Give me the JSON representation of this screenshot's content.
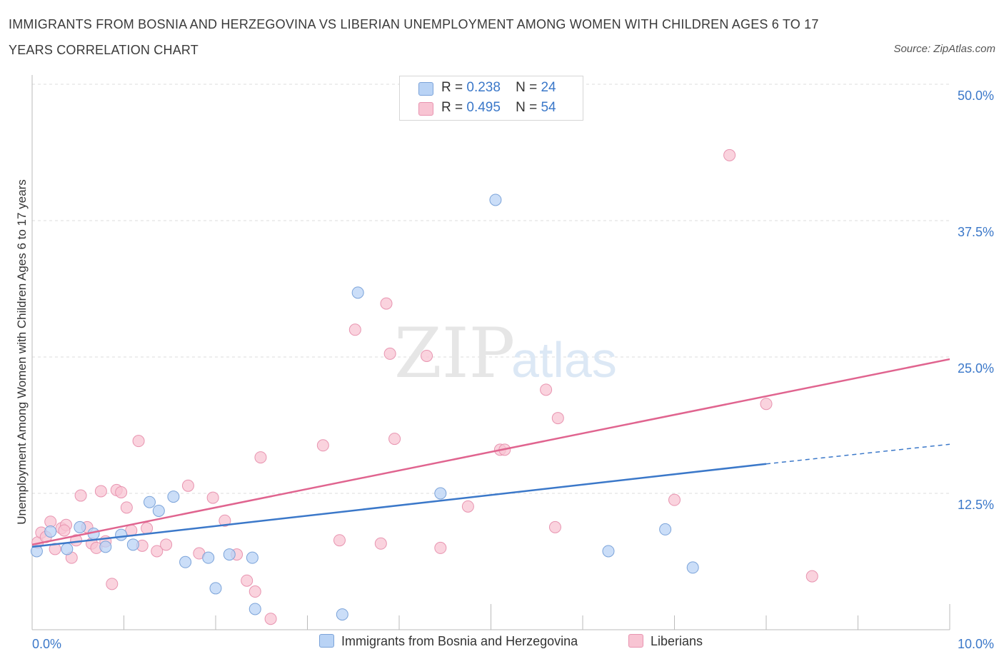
{
  "title": "IMMIGRANTS FROM BOSNIA AND HERZEGOVINA VS LIBERIAN UNEMPLOYMENT AMONG WOMEN WITH CHILDREN AGES 6 TO 17 YEARS CORRELATION CHART",
  "source": "Source: ZipAtlas.com",
  "watermark": {
    "zip": "ZIP",
    "atlas": "atlas"
  },
  "legend": {
    "rows": [
      {
        "r_label": "R =",
        "r_value": "0.238",
        "n_label": "N =",
        "n_value": "24",
        "fill": "#b9d3f5",
        "stroke": "#7ba3d9"
      },
      {
        "r_label": "R =",
        "r_value": "0.495",
        "n_label": "N =",
        "n_value": "54",
        "fill": "#f8c4d3",
        "stroke": "#e894b0"
      }
    ]
  },
  "bottom_legend": {
    "blue_label": "Immigrants from Bosnia and Herzegovina",
    "pink_label": "Liberians"
  },
  "chart_data": {
    "type": "scatter",
    "xlabel": "",
    "ylabel": "Unemployment Among Women with Children Ages 6 to 17 years",
    "xlim": [
      0,
      10
    ],
    "ylim": [
      0,
      50
    ],
    "x_tick_labels": [
      "0.0%",
      "10.0%"
    ],
    "y_ticks": [
      12.5,
      25,
      37.5,
      50
    ],
    "y_tick_labels": [
      "12.5%",
      "25.0%",
      "37.5%",
      "50.0%"
    ],
    "grid": true,
    "colors": {
      "blue": "#3b78c9",
      "pink": "#e0648f",
      "axis_label": "#3b78c9"
    },
    "series": [
      {
        "name": "Immigrants from Bosnia and Herzegovina",
        "color": "#3b78c9",
        "fill": "#b9d3f5",
        "trend": {
          "x0": 0,
          "y0": 7.6,
          "x1": 8.0,
          "y1": 15.2,
          "dashed_to_x": 10,
          "dashed_to_y": 17.0
        },
        "points": [
          [
            0.05,
            7.2
          ],
          [
            0.2,
            9.0
          ],
          [
            0.38,
            7.4
          ],
          [
            0.52,
            9.4
          ],
          [
            0.67,
            8.8
          ],
          [
            0.8,
            7.6
          ],
          [
            0.97,
            8.7
          ],
          [
            1.1,
            7.8
          ],
          [
            1.28,
            11.7
          ],
          [
            1.38,
            10.9
          ],
          [
            1.54,
            12.2
          ],
          [
            1.67,
            6.2
          ],
          [
            1.92,
            6.6
          ],
          [
            2.0,
            3.8
          ],
          [
            2.15,
            6.9
          ],
          [
            2.4,
            6.6
          ],
          [
            2.43,
            1.9
          ],
          [
            3.55,
            30.9
          ],
          [
            3.38,
            1.4
          ],
          [
            4.45,
            12.5
          ],
          [
            5.05,
            39.4
          ],
          [
            6.28,
            7.2
          ],
          [
            6.9,
            9.2
          ],
          [
            7.2,
            5.7
          ]
        ]
      },
      {
        "name": "Liberians",
        "color": "#e0648f",
        "fill": "#f8c4d3",
        "trend": {
          "x0": 0,
          "y0": 7.8,
          "x1": 10,
          "y1": 24.8
        },
        "points": [
          [
            0.06,
            8.0
          ],
          [
            0.1,
            8.9
          ],
          [
            0.15,
            8.5
          ],
          [
            0.2,
            9.9
          ],
          [
            0.25,
            7.4
          ],
          [
            0.32,
            9.3
          ],
          [
            0.37,
            9.6
          ],
          [
            0.43,
            6.6
          ],
          [
            0.48,
            8.2
          ],
          [
            0.53,
            12.3
          ],
          [
            0.6,
            9.4
          ],
          [
            0.65,
            7.9
          ],
          [
            0.7,
            7.5
          ],
          [
            0.75,
            12.7
          ],
          [
            0.8,
            8.1
          ],
          [
            0.87,
            4.2
          ],
          [
            0.92,
            12.8
          ],
          [
            0.97,
            12.6
          ],
          [
            1.03,
            11.2
          ],
          [
            1.08,
            9.1
          ],
          [
            1.16,
            17.3
          ],
          [
            1.2,
            7.7
          ],
          [
            1.25,
            9.3
          ],
          [
            1.36,
            7.2
          ],
          [
            1.46,
            7.8
          ],
          [
            1.7,
            13.2
          ],
          [
            1.82,
            7.0
          ],
          [
            1.97,
            12.1
          ],
          [
            2.1,
            10.0
          ],
          [
            2.23,
            6.9
          ],
          [
            2.34,
            4.5
          ],
          [
            2.43,
            3.5
          ],
          [
            2.49,
            15.8
          ],
          [
            2.6,
            1.0
          ],
          [
            3.17,
            16.9
          ],
          [
            3.35,
            8.2
          ],
          [
            3.52,
            27.5
          ],
          [
            3.8,
            7.9
          ],
          [
            3.86,
            29.9
          ],
          [
            3.9,
            25.3
          ],
          [
            3.95,
            17.5
          ],
          [
            4.3,
            25.1
          ],
          [
            4.45,
            7.5
          ],
          [
            4.75,
            11.3
          ],
          [
            5.1,
            16.5
          ],
          [
            5.15,
            16.5
          ],
          [
            5.6,
            22.0
          ],
          [
            5.7,
            9.4
          ],
          [
            5.73,
            19.4
          ],
          [
            7.0,
            11.9
          ],
          [
            7.6,
            43.5
          ],
          [
            8.0,
            20.7
          ],
          [
            8.5,
            4.9
          ],
          [
            0.35,
            9.1
          ]
        ]
      }
    ]
  }
}
